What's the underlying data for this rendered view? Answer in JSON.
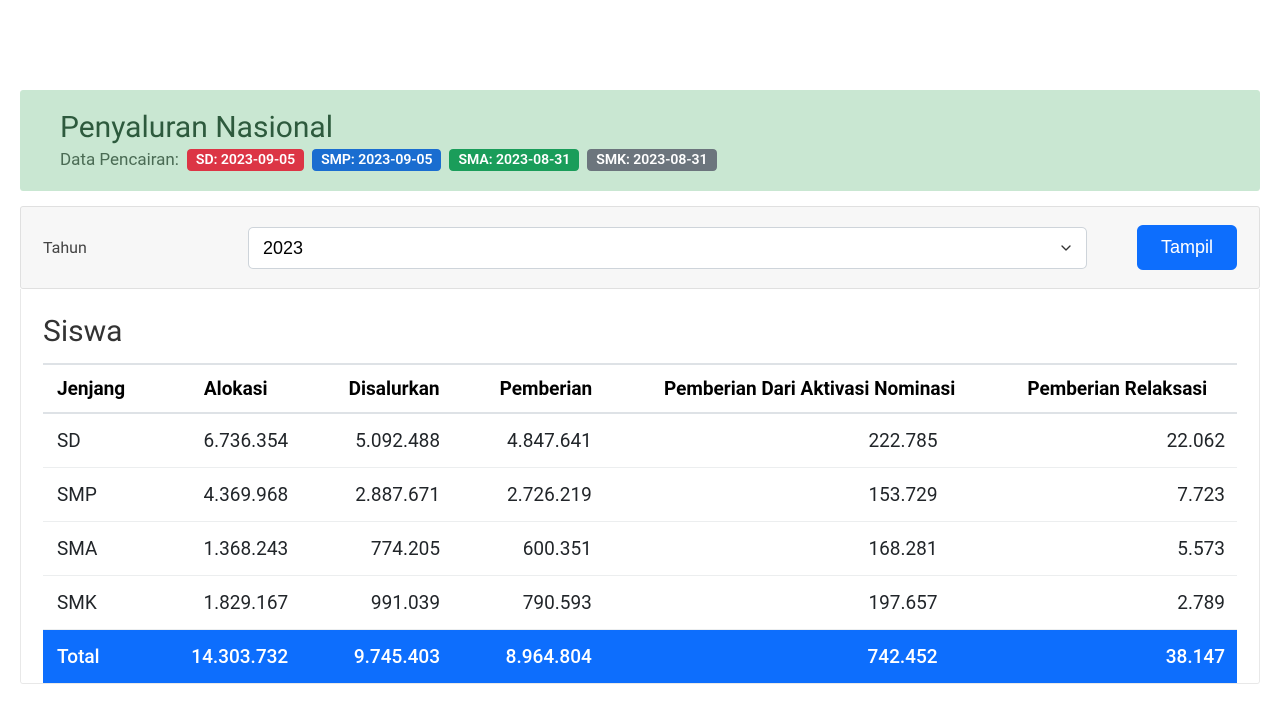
{
  "header": {
    "title": "Penyaluran Nasional",
    "subtitle_prefix": "Data Pencairan:",
    "badges": [
      {
        "label": "SD: 2023-09-05",
        "color": "#dc3545"
      },
      {
        "label": "SMP: 2023-09-05",
        "color": "#1a6dd0"
      },
      {
        "label": "SMA: 2023-08-31",
        "color": "#1a9d5a"
      },
      {
        "label": "SMK: 2023-08-31",
        "color": "#6c757d"
      }
    ],
    "panel_bg": "#c9e7d2",
    "title_color": "#2d5a3d"
  },
  "filter": {
    "label": "Tahun",
    "selected": "2023",
    "button": "Tampil",
    "button_bg": "#0d6efd"
  },
  "table": {
    "title": "Siswa",
    "columns": [
      "Jenjang",
      "Alokasi",
      "Disalurkan",
      "Pemberian",
      "Pemberian Dari Aktivasi Nominasi",
      "Pemberian Relaksasi"
    ],
    "rows": [
      {
        "jenjang": "SD",
        "alokasi": "6.736.354",
        "disalurkan": "5.092.488",
        "pemberian": "4.847.641",
        "aktivasi": "222.785",
        "relaksasi": "22.062"
      },
      {
        "jenjang": "SMP",
        "alokasi": "4.369.968",
        "disalurkan": "2.887.671",
        "pemberian": "2.726.219",
        "aktivasi": "153.729",
        "relaksasi": "7.723"
      },
      {
        "jenjang": "SMA",
        "alokasi": "1.368.243",
        "disalurkan": "774.205",
        "pemberian": "600.351",
        "aktivasi": "168.281",
        "relaksasi": "5.573"
      },
      {
        "jenjang": "SMK",
        "alokasi": "1.829.167",
        "disalurkan": "991.039",
        "pemberian": "790.593",
        "aktivasi": "197.657",
        "relaksasi": "2.789"
      }
    ],
    "total": {
      "jenjang": "Total",
      "alokasi": "14.303.732",
      "disalurkan": "9.745.403",
      "pemberian": "8.964.804",
      "aktivasi": "742.452",
      "relaksasi": "38.147"
    },
    "total_bg": "#0d6efd",
    "header_fontsize": 19,
    "cell_fontsize": 19
  }
}
